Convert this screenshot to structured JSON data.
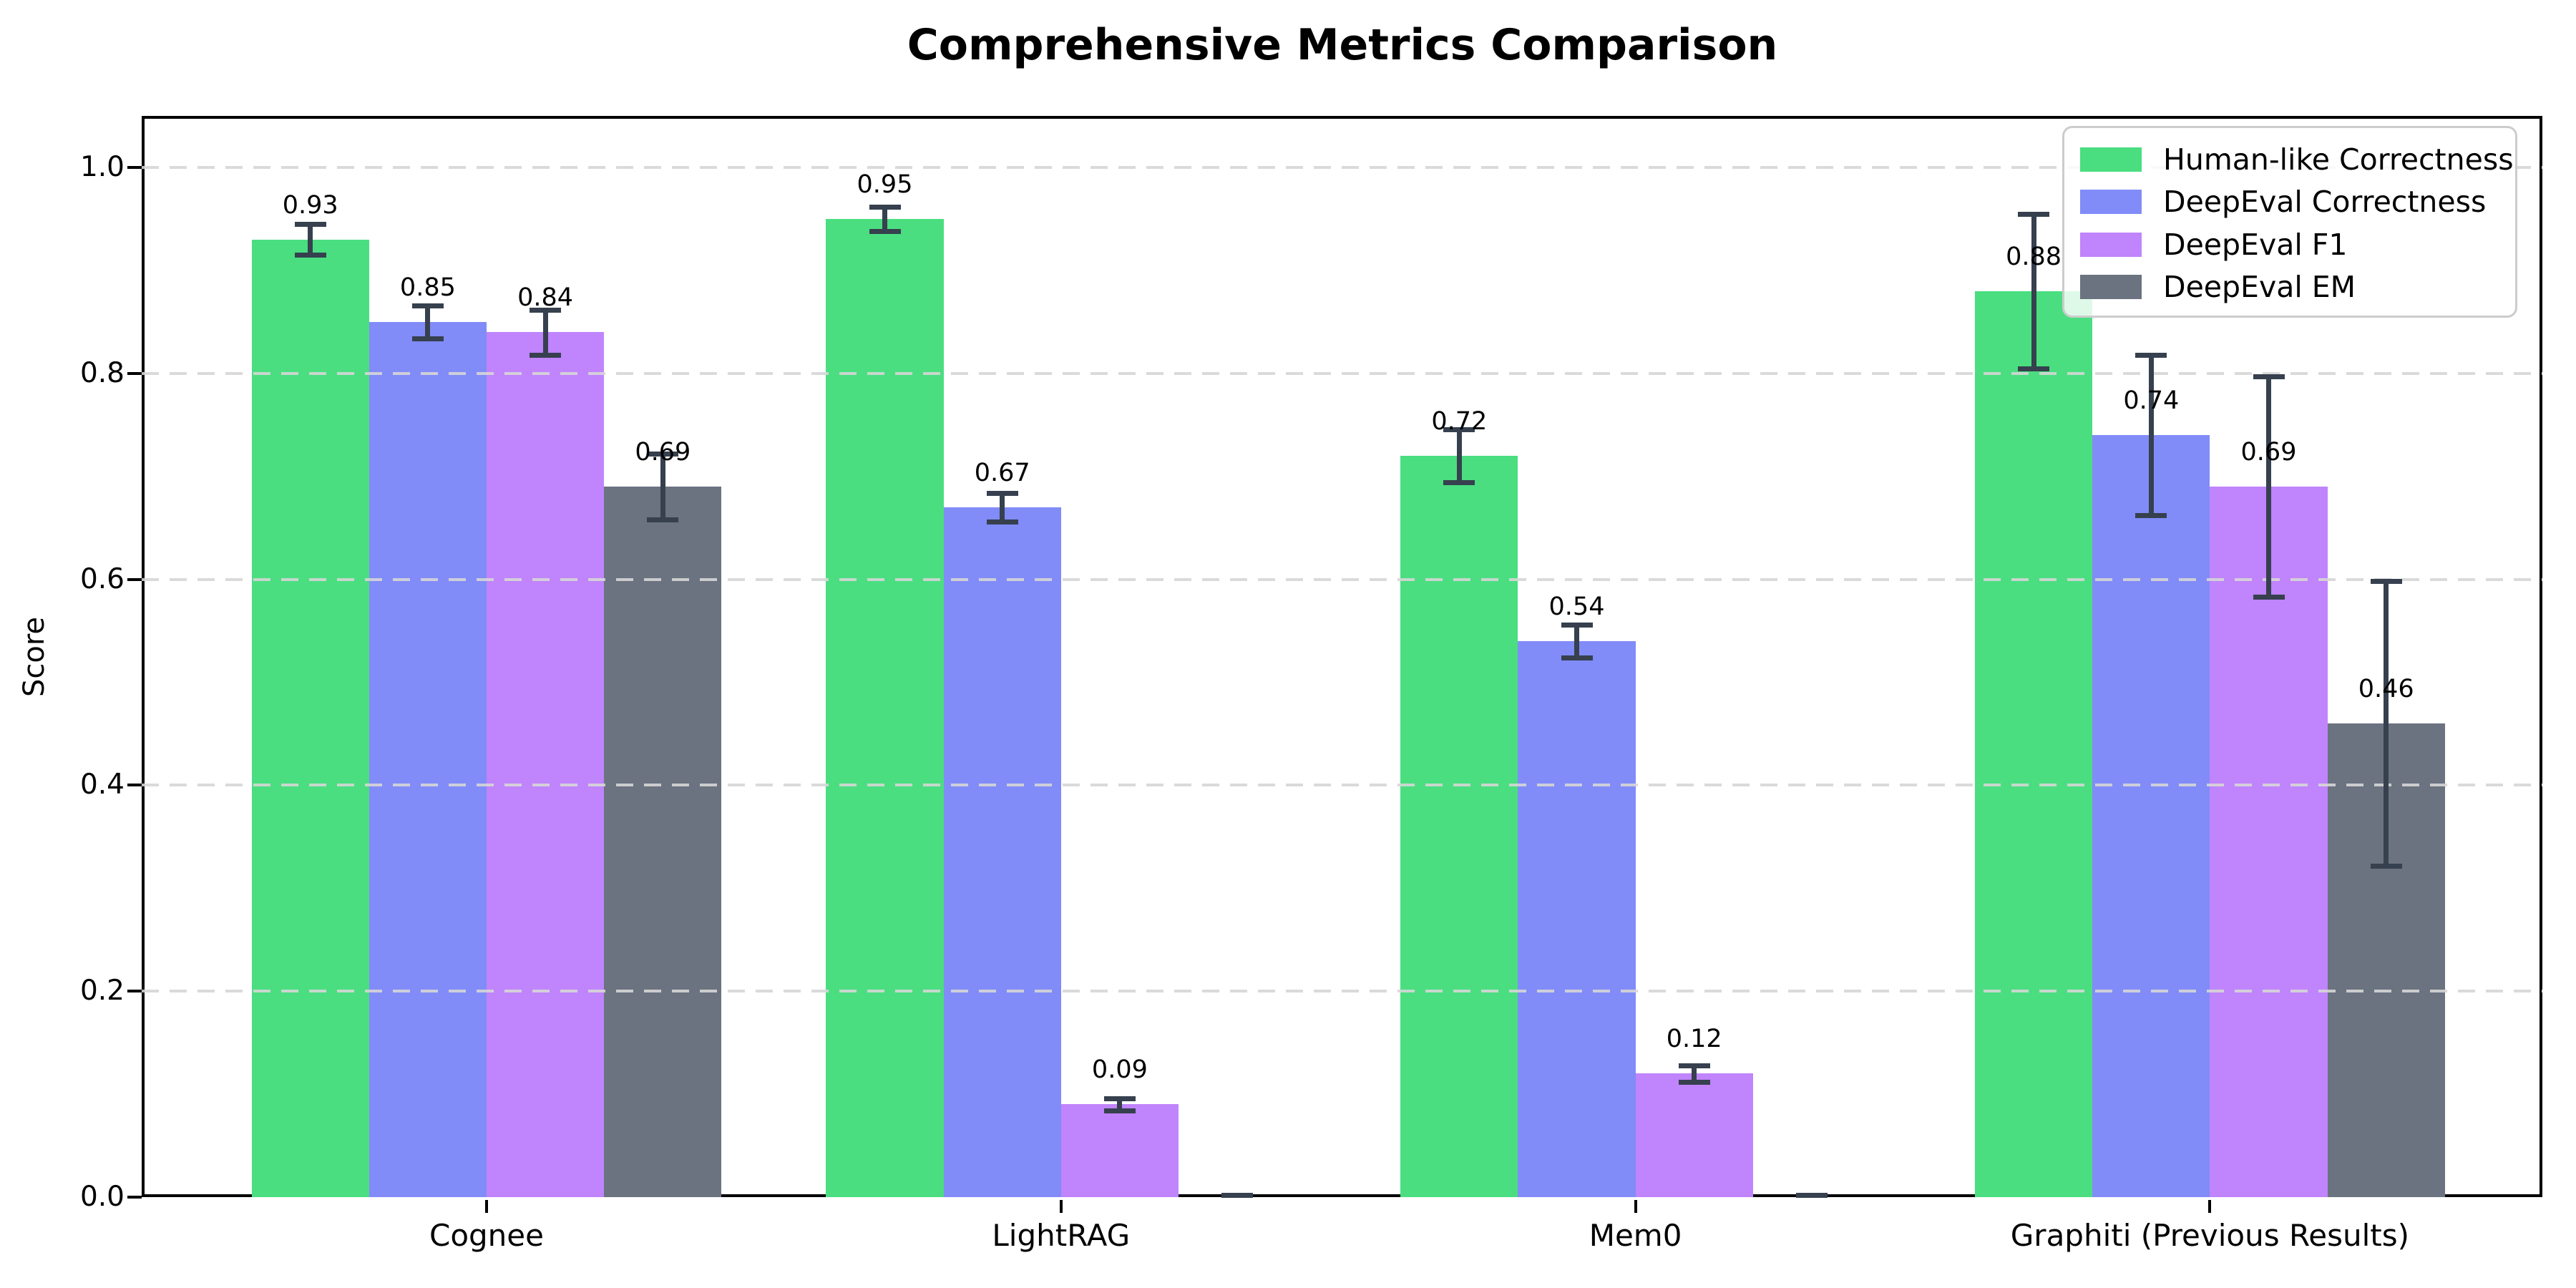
{
  "title": "Comprehensive Metrics Comparison",
  "ylabel": "Score",
  "chart_data": {
    "type": "bar",
    "categories": [
      "Cognee",
      "LightRAG",
      "Mem0",
      "Graphiti (Previous Results)"
    ],
    "series": [
      {
        "name": "Human-like Correctness",
        "color": "#4ade80",
        "values": [
          0.93,
          0.95,
          0.72,
          0.88
        ],
        "errors": [
          0.015,
          0.012,
          0.026,
          0.075
        ],
        "bar_labels": [
          "0.93",
          "0.95",
          "0.72",
          "0.88"
        ]
      },
      {
        "name": "DeepEval Correctness",
        "color": "#818cf8",
        "values": [
          0.85,
          0.67,
          0.54,
          0.74
        ],
        "errors": [
          0.016,
          0.014,
          0.016,
          0.078
        ],
        "bar_labels": [
          "0.85",
          "0.67",
          "0.54",
          "0.74"
        ]
      },
      {
        "name": "DeepEval F1",
        "color": "#c084fc",
        "values": [
          0.84,
          0.09,
          0.12,
          0.69
        ],
        "errors": [
          0.022,
          0.006,
          0.008,
          0.107
        ],
        "bar_labels": [
          "0.84",
          "0.09",
          "0.12",
          "0.69"
        ]
      },
      {
        "name": "DeepEval EM",
        "color": "#6b7280",
        "values": [
          0.69,
          0.0,
          0.0,
          0.46
        ],
        "errors": [
          0.032,
          0.002,
          0.002,
          0.138
        ],
        "bar_labels": [
          "0.69",
          "",
          "",
          "0.46"
        ]
      }
    ],
    "ylim": [
      0.0,
      1.05
    ],
    "yticks": [
      "0.0",
      "0.2",
      "0.4",
      "0.6",
      "0.8",
      "1.0"
    ],
    "grid": "horizontal dashed at 0.2 intervals, drawn above bars",
    "legend_position": "upper right",
    "error_bar_color": "#36404e",
    "gridline_color": "#d6d6d6"
  }
}
